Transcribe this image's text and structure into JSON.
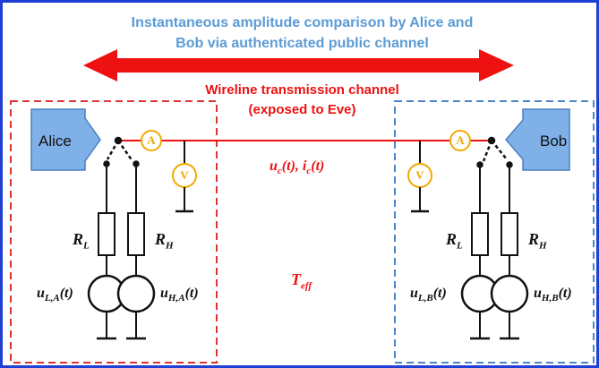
{
  "diagram": {
    "title_line1": "Instantaneous amplitude comparison by Alice and",
    "title_line2": "Bob via authenticated public channel",
    "channel_label_line1": "Wireline transmission channel",
    "channel_label_line2": "(exposed to Eve)",
    "alice": {
      "name": "Alice",
      "ammeter": "A",
      "voltmeter": "V",
      "r_low": {
        "sym": "R",
        "sub": "L"
      },
      "r_high": {
        "sym": "R",
        "sub": "H"
      },
      "u_low": {
        "sym": "u",
        "sub": "L,A",
        "arg": "(t)"
      },
      "u_high": {
        "sym": "u",
        "sub": "H,A",
        "arg": "(t)"
      }
    },
    "bob": {
      "name": "Bob",
      "ammeter": "A",
      "voltmeter": "V",
      "r_low": {
        "sym": "R",
        "sub": "L"
      },
      "r_high": {
        "sym": "R",
        "sub": "H"
      },
      "u_low": {
        "sym": "u",
        "sub": "L,B",
        "arg": "(t)"
      },
      "u_high": {
        "sym": "u",
        "sub": "H,B",
        "arg": "(t)"
      }
    },
    "wire_quantities": {
      "u": "u",
      "u_sub": "c",
      "u_arg": "(t), ",
      "i": "i",
      "i_sub": "c",
      "i_arg": "(t)"
    },
    "t_eff": {
      "sym": "T",
      "sub": "eff"
    },
    "colors": {
      "border": "#1f3fd6",
      "alice_box": "#dd3333",
      "bob_box": "#4a86c8",
      "block_fill": "#7fb0e8",
      "wire": "#ee1111",
      "meter": "#f2a900",
      "title": "#5b9bd5"
    },
    "icons": [
      "double-arrow-icon",
      "ammeter-icon",
      "voltmeter-icon",
      "resistor-icon",
      "voltage-source-icon",
      "ground-icon",
      "switch-icon"
    ]
  }
}
